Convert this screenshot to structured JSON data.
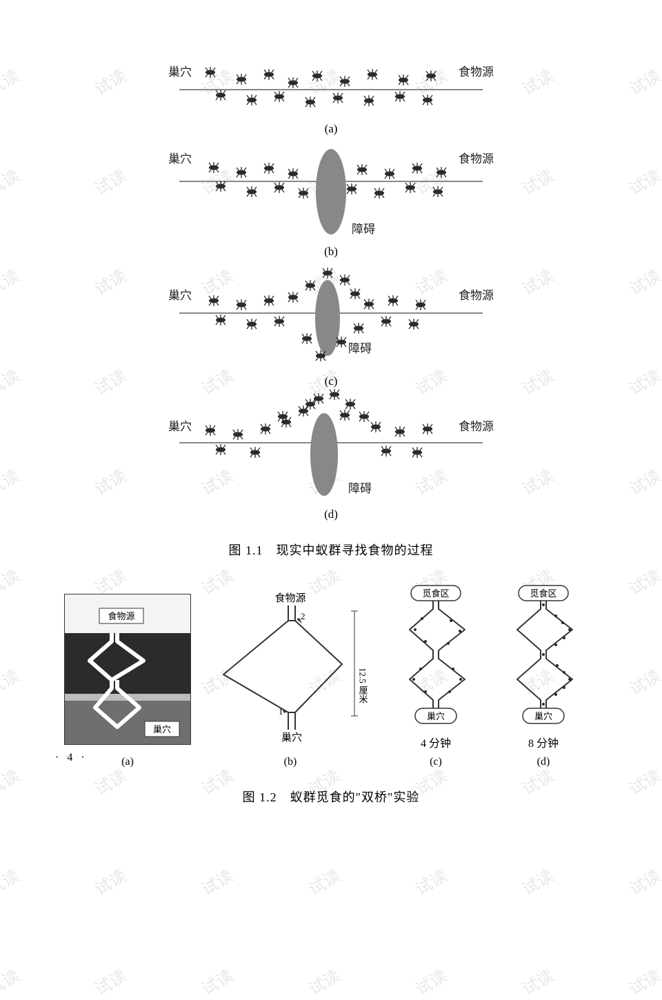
{
  "watermark_text": "试读",
  "labels": {
    "nest": "巢穴",
    "food": "食物源",
    "obstacle": "障碍",
    "forage_zone": "觅食区",
    "measure": "12.5 厘米"
  },
  "fig1": {
    "caption": "图 1.1　现实中蚁群寻找食物的过程",
    "panels": {
      "a": {
        "sub": "(a)"
      },
      "b": {
        "sub": "(b)"
      },
      "c": {
        "sub": "(c)"
      },
      "d": {
        "sub": "(d)"
      }
    },
    "colors": {
      "path": "#8a8a8a",
      "obstacle_fill": "#8a8a8a",
      "ant": "#2b2b2b"
    }
  },
  "fig2": {
    "caption": "图 1.2　蚁群觅食的\"双桥\"实验",
    "a": {
      "sub": "(a)",
      "label_food": "食物源",
      "label_nest": "巢穴"
    },
    "b": {
      "sub": "(b)",
      "top": "食物源",
      "bottom": "巢穴",
      "marker1": "1",
      "marker2": "2"
    },
    "c": {
      "sub": "(c)",
      "top": "觅食区",
      "bottom": "巢穴",
      "time": "4 分钟"
    },
    "d": {
      "sub": "(d)",
      "top": "觅食区",
      "bottom": "巢穴",
      "time": "8 分钟"
    }
  },
  "page_number": "· 4 ·",
  "styling": {
    "page_bg": "#ffffff",
    "text_color": "#222222",
    "watermark_color": "#e8e8e8",
    "font_family": "SimSun",
    "caption_fontsize": 18,
    "label_fontsize": 17
  }
}
